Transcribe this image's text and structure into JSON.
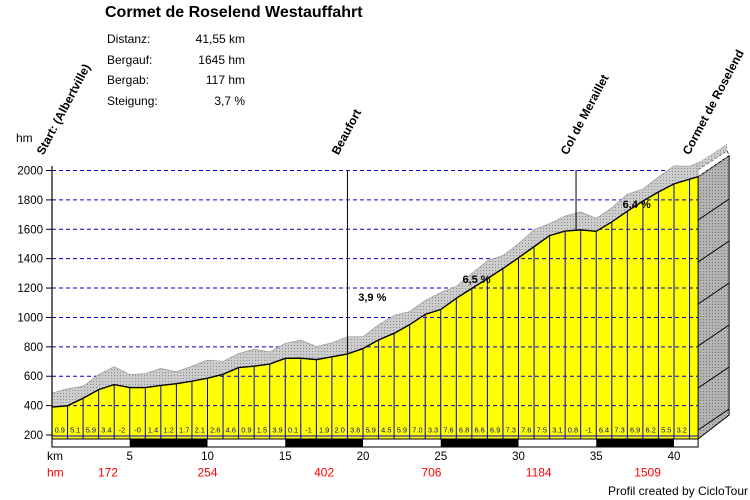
{
  "title": "Cormet de Roselend Westauffahrt",
  "stats": [
    {
      "label": "Distanz:",
      "value": "41,55 km"
    },
    {
      "label": "Bergauf:",
      "value": "1645 hm"
    },
    {
      "label": "Bergab:",
      "value": "117 hm"
    },
    {
      "label": "Steigung:",
      "value": "3,7 %"
    }
  ],
  "footer": {
    "credit": "Profil created by CicloTour"
  },
  "chart_data": {
    "type": "area",
    "title": "Cormet de Roselend Westauffahrt",
    "x_unit": "km",
    "y_unit": "hm",
    "xlim": [
      0,
      41.55
    ],
    "ylim": [
      200,
      2000
    ],
    "x_ticks": [
      5,
      10,
      15,
      20,
      25,
      30,
      35,
      40
    ],
    "y_ticks": [
      200,
      400,
      600,
      800,
      1000,
      1200,
      1400,
      1600,
      1800,
      2000
    ],
    "grid": "horizontal-dashed-blue",
    "profile": {
      "km": [
        0,
        1,
        2,
        3,
        4,
        5,
        6,
        7,
        8,
        9,
        10,
        11,
        12,
        13,
        14,
        15,
        16,
        17,
        18,
        19,
        20,
        21,
        22,
        23,
        24,
        25,
        26,
        27,
        28,
        29,
        30,
        31,
        32,
        33,
        34,
        35,
        36,
        37,
        38,
        39,
        40,
        41,
        41.55
      ],
      "elevation_m": [
        390,
        399,
        450,
        509,
        543,
        523,
        523,
        537,
        549,
        566,
        587,
        613,
        659,
        668,
        683,
        722,
        723,
        713,
        732,
        752,
        788,
        847,
        892,
        951,
        1021,
        1054,
        1130,
        1198,
        1264,
        1333,
        1406,
        1482,
        1557,
        1588,
        1596,
        1586,
        1650,
        1723,
        1792,
        1854,
        1909,
        1941,
        1958
      ]
    },
    "gradient_per_km_percent": [
      "0.9",
      "5.1",
      "5.9",
      "3.4",
      "-2",
      "-0",
      "1.4",
      "1.2",
      "1.7",
      "2.1",
      "2.6",
      "4.6",
      "0.9",
      "1.5",
      "3.9",
      "0.1",
      "-1",
      "1.9",
      "2.0",
      "3.6",
      "5.9",
      "4.5",
      "5.9",
      "7.0",
      "3.3",
      "7.6",
      "6.8",
      "6.6",
      "6.9",
      "7.3",
      "7.6",
      "7.5",
      "3.1",
      "0.8",
      "-1",
      "6.4",
      "7.3",
      "6.9",
      "6.2",
      "5.5",
      "3.2"
    ],
    "landmarks": [
      {
        "name": "Start: (Albertville)",
        "km": 0,
        "marker_line": false
      },
      {
        "name": "Beaufort",
        "km": 19,
        "marker_line": true
      },
      {
        "name": "Col de Meraillet",
        "km": 33.7,
        "marker_line": true
      },
      {
        "name": "Cormet de Roselend",
        "km": 41.55,
        "marker_line": false
      }
    ],
    "gradient_annotations": [
      {
        "text": "3,9 %",
        "km": 20.6,
        "elevation_m": 1140
      },
      {
        "text": "6,5 %",
        "km": 27.3,
        "elevation_m": 1262
      },
      {
        "text": "6,4 %",
        "km": 37.6,
        "elevation_m": 1772
      }
    ],
    "climb_row": {
      "label": "hm",
      "entries": [
        {
          "km": 3.6,
          "value": "172"
        },
        {
          "km": 10.0,
          "value": "254"
        },
        {
          "km": 17.5,
          "value": "402"
        },
        {
          "km": 24.4,
          "value": "706"
        },
        {
          "km": 31.3,
          "value": "1184"
        },
        {
          "km": 38.3,
          "value": "1509"
        }
      ]
    },
    "colors": {
      "area_fill": "#ffff00",
      "grid_blue": "#0000cc",
      "gradient_text": "#000099",
      "climb_red": "#ff0000",
      "profile_line": "#000000",
      "band_gray": "#cccccc",
      "face_gray": "#b3b3b3"
    }
  }
}
